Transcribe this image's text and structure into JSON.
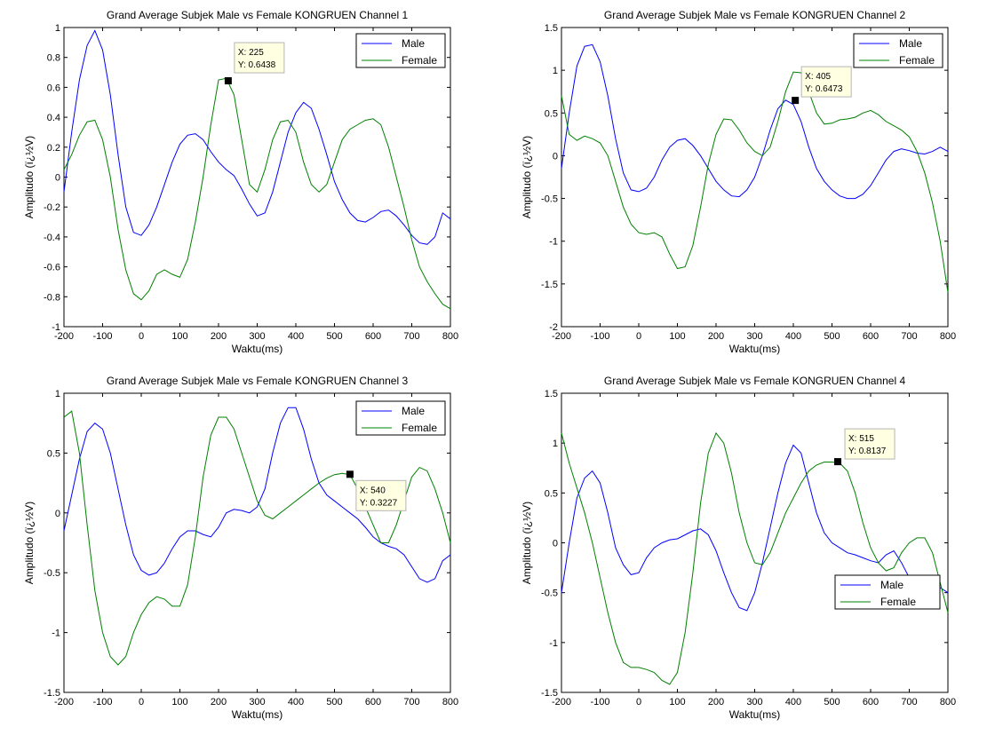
{
  "figure": {
    "background": "#ffffff"
  },
  "chart_data": [
    {
      "type": "line",
      "title": "Grand Average Subjek Male vs Female KONGRUEN Channel 1",
      "xlabel": "Waktu(ms)",
      "ylabel": "Amplitudo (ï¿½V)",
      "xlim": [
        -200,
        800
      ],
      "ylim": [
        -1,
        1
      ],
      "xticks": [
        -200,
        -100,
        0,
        100,
        200,
        300,
        400,
        500,
        600,
        700,
        800
      ],
      "xtick_labels": [
        "-200",
        "-100",
        "0",
        "100",
        "200",
        "300",
        "400",
        "500",
        "600",
        "700",
        "800"
      ],
      "yticks": [
        -1,
        -0.8,
        -0.6,
        -0.4,
        -0.2,
        0,
        0.2,
        0.4,
        0.6,
        0.8,
        1
      ],
      "ytick_labels": [
        "-1",
        "-0.8",
        "-0.6",
        "-0.4",
        "-0.2",
        "0",
        "0.2",
        "0.4",
        "0.6",
        "0.8",
        "1"
      ],
      "grid": false,
      "legend_position": "top-right",
      "series": [
        {
          "name": "Male",
          "color": "#0000ff",
          "x": [
            -200,
            -180,
            -160,
            -140,
            -120,
            -100,
            -80,
            -60,
            -40,
            -20,
            0,
            20,
            40,
            60,
            80,
            100,
            120,
            140,
            160,
            180,
            200,
            220,
            240,
            260,
            280,
            300,
            320,
            340,
            360,
            380,
            400,
            420,
            440,
            460,
            480,
            500,
            520,
            540,
            560,
            580,
            600,
            620,
            640,
            660,
            680,
            700,
            720,
            740,
            760,
            780,
            800
          ],
          "y": [
            -0.1,
            0.3,
            0.65,
            0.88,
            0.98,
            0.85,
            0.55,
            0.15,
            -0.2,
            -0.37,
            -0.39,
            -0.32,
            -0.2,
            -0.05,
            0.1,
            0.22,
            0.28,
            0.29,
            0.25,
            0.17,
            0.1,
            0.05,
            0.01,
            -0.08,
            -0.18,
            -0.26,
            -0.24,
            -0.1,
            0.1,
            0.3,
            0.43,
            0.5,
            0.46,
            0.32,
            0.15,
            -0.03,
            -0.15,
            -0.24,
            -0.29,
            -0.3,
            -0.27,
            -0.23,
            -0.22,
            -0.26,
            -0.32,
            -0.39,
            -0.44,
            -0.45,
            -0.4,
            -0.24,
            -0.28
          ]
        },
        {
          "name": "Female",
          "color": "#008000",
          "x": [
            -200,
            -180,
            -160,
            -140,
            -120,
            -100,
            -80,
            -60,
            -40,
            -20,
            0,
            20,
            40,
            60,
            80,
            100,
            120,
            140,
            160,
            180,
            200,
            220,
            240,
            260,
            280,
            300,
            320,
            340,
            360,
            380,
            400,
            420,
            440,
            460,
            480,
            500,
            520,
            540,
            560,
            580,
            600,
            620,
            640,
            660,
            680,
            700,
            720,
            740,
            760,
            780,
            800
          ],
          "y": [
            0.05,
            0.15,
            0.28,
            0.37,
            0.38,
            0.25,
            0.0,
            -0.35,
            -0.62,
            -0.78,
            -0.82,
            -0.76,
            -0.65,
            -0.62,
            -0.65,
            -0.67,
            -0.55,
            -0.3,
            0.0,
            0.35,
            0.65,
            0.66,
            0.55,
            0.25,
            -0.05,
            -0.1,
            0.05,
            0.25,
            0.37,
            0.38,
            0.3,
            0.1,
            -0.05,
            -0.1,
            -0.05,
            0.1,
            0.25,
            0.32,
            0.35,
            0.38,
            0.39,
            0.35,
            0.2,
            0.0,
            -0.2,
            -0.42,
            -0.6,
            -0.7,
            -0.78,
            -0.85,
            -0.88
          ]
        }
      ],
      "datatip": {
        "x_text": "X: 225",
        "y_text": "Y: 0.6438",
        "x": 225,
        "y": 0.6438
      }
    },
    {
      "type": "line",
      "title": "Grand Average Subjek Male vs Female KONGRUEN Channel 2",
      "xlabel": "Waktu(ms)",
      "ylabel": "Amplitudo (ï¿½V)",
      "xlim": [
        -200,
        800
      ],
      "ylim": [
        -2,
        1.5
      ],
      "xticks": [
        -200,
        -100,
        0,
        100,
        200,
        300,
        400,
        500,
        600,
        700,
        800
      ],
      "xtick_labels": [
        "-200",
        "-100",
        "0",
        "100",
        "200",
        "300",
        "400",
        "500",
        "600",
        "700",
        "800"
      ],
      "yticks": [
        -2,
        -1.5,
        -1,
        -0.5,
        0,
        0.5,
        1,
        1.5
      ],
      "ytick_labels": [
        "-2",
        "-1.5",
        "-1",
        "-0.5",
        "0",
        "0.5",
        "1",
        "1.5"
      ],
      "grid": false,
      "legend_position": "top-right",
      "series": [
        {
          "name": "Male",
          "color": "#0000ff",
          "x": [
            -200,
            -180,
            -160,
            -140,
            -120,
            -100,
            -80,
            -60,
            -40,
            -20,
            0,
            20,
            40,
            60,
            80,
            100,
            120,
            140,
            160,
            180,
            200,
            220,
            240,
            260,
            280,
            300,
            320,
            340,
            360,
            380,
            400,
            420,
            440,
            460,
            480,
            500,
            520,
            540,
            560,
            580,
            600,
            620,
            640,
            660,
            680,
            700,
            720,
            740,
            760,
            780,
            800
          ],
          "y": [
            -0.15,
            0.5,
            1.05,
            1.28,
            1.3,
            1.1,
            0.7,
            0.2,
            -0.2,
            -0.4,
            -0.42,
            -0.38,
            -0.25,
            -0.05,
            0.1,
            0.18,
            0.2,
            0.12,
            0.0,
            -0.15,
            -0.3,
            -0.4,
            -0.47,
            -0.48,
            -0.4,
            -0.25,
            0.0,
            0.3,
            0.55,
            0.65,
            0.6,
            0.4,
            0.1,
            -0.15,
            -0.3,
            -0.4,
            -0.47,
            -0.5,
            -0.5,
            -0.45,
            -0.35,
            -0.2,
            -0.05,
            0.05,
            0.08,
            0.06,
            0.03,
            0.02,
            0.05,
            0.1,
            0.05
          ]
        },
        {
          "name": "Female",
          "color": "#008000",
          "x": [
            -200,
            -180,
            -160,
            -140,
            -120,
            -100,
            -80,
            -60,
            -40,
            -20,
            0,
            20,
            40,
            60,
            80,
            100,
            120,
            140,
            160,
            180,
            200,
            220,
            240,
            260,
            280,
            300,
            320,
            340,
            360,
            380,
            400,
            420,
            440,
            460,
            480,
            500,
            520,
            540,
            560,
            580,
            600,
            620,
            640,
            660,
            680,
            700,
            720,
            740,
            760,
            780,
            800
          ],
          "y": [
            0.7,
            0.25,
            0.18,
            0.23,
            0.2,
            0.15,
            0.0,
            -0.3,
            -0.6,
            -0.8,
            -0.9,
            -0.92,
            -0.9,
            -0.95,
            -1.15,
            -1.32,
            -1.3,
            -1.05,
            -0.6,
            -0.1,
            0.25,
            0.43,
            0.42,
            0.3,
            0.15,
            0.05,
            0.0,
            0.1,
            0.4,
            0.75,
            0.98,
            0.97,
            0.75,
            0.5,
            0.37,
            0.38,
            0.42,
            0.43,
            0.45,
            0.5,
            0.53,
            0.48,
            0.4,
            0.35,
            0.3,
            0.22,
            0.05,
            -0.2,
            -0.55,
            -1.0,
            -1.6
          ]
        }
      ],
      "datatip": {
        "x_text": "X: 405",
        "y_text": "Y: 0.6473",
        "x": 405,
        "y": 0.6473
      }
    },
    {
      "type": "line",
      "title": "Grand Average Subjek Male vs Female KONGRUEN Channel 3",
      "xlabel": "Waktu(ms)",
      "ylabel": "Amplitudo (ï¿½V)",
      "xlim": [
        -200,
        800
      ],
      "ylim": [
        -1.5,
        1
      ],
      "xticks": [
        -200,
        -100,
        0,
        100,
        200,
        300,
        400,
        500,
        600,
        700,
        800
      ],
      "xtick_labels": [
        "-200",
        "-100",
        "0",
        "100",
        "200",
        "300",
        "400",
        "500",
        "600",
        "700",
        "800"
      ],
      "yticks": [
        -1.5,
        -1,
        -0.5,
        0,
        0.5,
        1
      ],
      "ytick_labels": [
        "-1.5",
        "-1",
        "-0.5",
        "0",
        "0.5",
        "1"
      ],
      "grid": false,
      "legend_position": "top-right",
      "series": [
        {
          "name": "Male",
          "color": "#0000ff",
          "x": [
            -200,
            -180,
            -160,
            -140,
            -120,
            -100,
            -80,
            -60,
            -40,
            -20,
            0,
            20,
            40,
            60,
            80,
            100,
            120,
            140,
            160,
            180,
            200,
            220,
            240,
            260,
            280,
            300,
            320,
            340,
            360,
            380,
            400,
            420,
            440,
            460,
            480,
            500,
            520,
            540,
            560,
            580,
            600,
            620,
            640,
            660,
            680,
            700,
            720,
            740,
            760,
            780,
            800
          ],
          "y": [
            -0.15,
            0.15,
            0.45,
            0.68,
            0.75,
            0.7,
            0.5,
            0.2,
            -0.1,
            -0.35,
            -0.48,
            -0.52,
            -0.5,
            -0.42,
            -0.3,
            -0.2,
            -0.15,
            -0.15,
            -0.18,
            -0.2,
            -0.12,
            0.0,
            0.03,
            0.02,
            0.0,
            0.05,
            0.2,
            0.5,
            0.75,
            0.88,
            0.88,
            0.7,
            0.45,
            0.25,
            0.15,
            0.1,
            0.05,
            0.0,
            -0.05,
            -0.12,
            -0.2,
            -0.25,
            -0.28,
            -0.3,
            -0.35,
            -0.45,
            -0.55,
            -0.58,
            -0.55,
            -0.4,
            -0.35
          ]
        },
        {
          "name": "Female",
          "color": "#008000",
          "x": [
            -200,
            -180,
            -160,
            -140,
            -120,
            -100,
            -80,
            -60,
            -40,
            -20,
            0,
            20,
            40,
            60,
            80,
            100,
            120,
            140,
            160,
            180,
            200,
            220,
            240,
            260,
            280,
            300,
            320,
            340,
            360,
            380,
            400,
            420,
            440,
            460,
            480,
            500,
            520,
            540,
            560,
            580,
            600,
            620,
            640,
            660,
            680,
            700,
            720,
            740,
            760,
            780,
            800
          ],
          "y": [
            0.8,
            0.85,
            0.5,
            -0.1,
            -0.65,
            -1.0,
            -1.2,
            -1.27,
            -1.2,
            -1.0,
            -0.85,
            -0.75,
            -0.7,
            -0.72,
            -0.78,
            -0.78,
            -0.6,
            -0.2,
            0.3,
            0.65,
            0.8,
            0.8,
            0.7,
            0.5,
            0.3,
            0.1,
            -0.02,
            -0.05,
            0.0,
            0.05,
            0.1,
            0.15,
            0.2,
            0.25,
            0.29,
            0.32,
            0.33,
            0.32,
            0.2,
            0.05,
            -0.1,
            -0.25,
            -0.25,
            -0.1,
            0.1,
            0.3,
            0.38,
            0.35,
            0.2,
            0.0,
            -0.25
          ]
        }
      ],
      "datatip": {
        "x_text": "X: 540",
        "y_text": "Y: 0.3227",
        "x": 540,
        "y": 0.3227
      }
    },
    {
      "type": "line",
      "title": "Grand Average Subjek Male vs Female KONGRUEN Channel 4",
      "xlabel": "Waktu(ms)",
      "ylabel": "Amplitudo (ï¿½V)",
      "xlim": [
        -200,
        800
      ],
      "ylim": [
        -1.5,
        1.5
      ],
      "xticks": [
        -200,
        -100,
        0,
        100,
        200,
        300,
        400,
        500,
        600,
        700,
        800
      ],
      "xtick_labels": [
        "-200",
        "-100",
        "0",
        "100",
        "200",
        "300",
        "400",
        "500",
        "600",
        "700",
        "800"
      ],
      "yticks": [
        -1.5,
        -1,
        -0.5,
        0,
        0.5,
        1,
        1.5
      ],
      "ytick_labels": [
        "-1.5",
        "-1",
        "-0.5",
        "0",
        "0.5",
        "1",
        "1.5"
      ],
      "grid": false,
      "legend_position": "bottom-right",
      "series": [
        {
          "name": "Male",
          "color": "#0000ff",
          "x": [
            -200,
            -180,
            -160,
            -140,
            -120,
            -100,
            -80,
            -60,
            -40,
            -20,
            0,
            20,
            40,
            60,
            80,
            100,
            120,
            140,
            160,
            180,
            200,
            220,
            240,
            260,
            280,
            300,
            320,
            340,
            360,
            380,
            400,
            420,
            440,
            460,
            480,
            500,
            520,
            540,
            560,
            580,
            600,
            620,
            640,
            660,
            680,
            700,
            720,
            740,
            760,
            780,
            800
          ],
          "y": [
            -0.5,
            0.0,
            0.45,
            0.65,
            0.72,
            0.6,
            0.3,
            -0.05,
            -0.22,
            -0.32,
            -0.3,
            -0.15,
            -0.05,
            0.0,
            0.03,
            0.04,
            0.08,
            0.12,
            0.14,
            0.08,
            -0.08,
            -0.3,
            -0.5,
            -0.65,
            -0.68,
            -0.5,
            -0.2,
            0.15,
            0.5,
            0.8,
            0.98,
            0.9,
            0.6,
            0.3,
            0.1,
            0.0,
            -0.05,
            -0.1,
            -0.12,
            -0.15,
            -0.18,
            -0.2,
            -0.12,
            -0.08,
            -0.2,
            -0.35,
            -0.45,
            -0.5,
            -0.4,
            -0.45,
            -0.5
          ]
        },
        {
          "name": "Female",
          "color": "#008000",
          "x": [
            -200,
            -180,
            -160,
            -140,
            -120,
            -100,
            -80,
            -60,
            -40,
            -20,
            0,
            20,
            40,
            60,
            80,
            100,
            120,
            140,
            160,
            180,
            200,
            220,
            240,
            260,
            280,
            300,
            320,
            340,
            360,
            380,
            400,
            420,
            440,
            460,
            480,
            500,
            520,
            540,
            560,
            580,
            600,
            620,
            640,
            660,
            680,
            700,
            720,
            740,
            760,
            780,
            800
          ],
          "y": [
            1.1,
            0.8,
            0.55,
            0.3,
            0.0,
            -0.35,
            -0.7,
            -1.0,
            -1.2,
            -1.25,
            -1.25,
            -1.27,
            -1.3,
            -1.38,
            -1.42,
            -1.3,
            -0.9,
            -0.3,
            0.4,
            0.9,
            1.1,
            1.0,
            0.7,
            0.3,
            0.0,
            -0.2,
            -0.22,
            -0.1,
            0.1,
            0.3,
            0.45,
            0.6,
            0.72,
            0.78,
            0.81,
            0.81,
            0.8,
            0.72,
            0.5,
            0.2,
            -0.05,
            -0.2,
            -0.28,
            -0.25,
            -0.1,
            0.0,
            0.05,
            0.05,
            -0.1,
            -0.4,
            -0.7
          ]
        }
      ],
      "datatip": {
        "x_text": "X: 515",
        "y_text": "Y: 0.8137",
        "x": 515,
        "y": 0.8137
      }
    }
  ]
}
